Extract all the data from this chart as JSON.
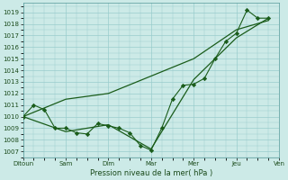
{
  "background_color": "#cceae7",
  "grid_color": "#99cccc",
  "line_color": "#1a5c1a",
  "marker_color": "#1a5c1a",
  "xlabel": "Pression niveau de la mer( hPa )",
  "ylim_min": 1006.5,
  "ylim_max": 1019.8,
  "yticks": [
    1007,
    1008,
    1009,
    1010,
    1011,
    1012,
    1013,
    1014,
    1015,
    1016,
    1017,
    1018,
    1019
  ],
  "x_day_labels": [
    "Ditoun",
    "Sam",
    "Dim",
    "Mar",
    "Mer",
    "Jeu",
    "Ven"
  ],
  "xlim_min": 0,
  "xlim_max": 6,
  "series1_x": [
    0.0,
    0.25,
    0.5,
    0.75,
    1.0,
    1.25,
    1.5,
    1.75,
    2.0,
    2.25,
    2.5,
    2.75,
    3.0,
    3.25,
    3.5,
    3.75,
    4.0,
    4.25,
    4.5,
    4.75,
    5.0,
    5.25,
    5.5,
    5.75
  ],
  "series1_y": [
    1010.0,
    1011.0,
    1010.6,
    1009.0,
    1009.0,
    1008.6,
    1008.5,
    1009.4,
    1009.2,
    1009.0,
    1008.6,
    1007.5,
    1007.1,
    1009.0,
    1011.5,
    1012.7,
    1012.8,
    1013.3,
    1015.0,
    1016.5,
    1017.2,
    1019.2,
    1018.5,
    1018.5
  ],
  "series2_x": [
    0.0,
    1.0,
    2.0,
    3.0,
    4.0,
    5.0,
    5.75
  ],
  "series2_y": [
    1010.0,
    1008.7,
    1009.3,
    1007.2,
    1013.2,
    1016.8,
    1018.5
  ],
  "series3_x": [
    0.0,
    1.0,
    2.0,
    3.0,
    4.0,
    5.0,
    5.75
  ],
  "series3_y": [
    1010.0,
    1011.5,
    1012.0,
    1013.5,
    1015.0,
    1017.5,
    1018.3
  ]
}
